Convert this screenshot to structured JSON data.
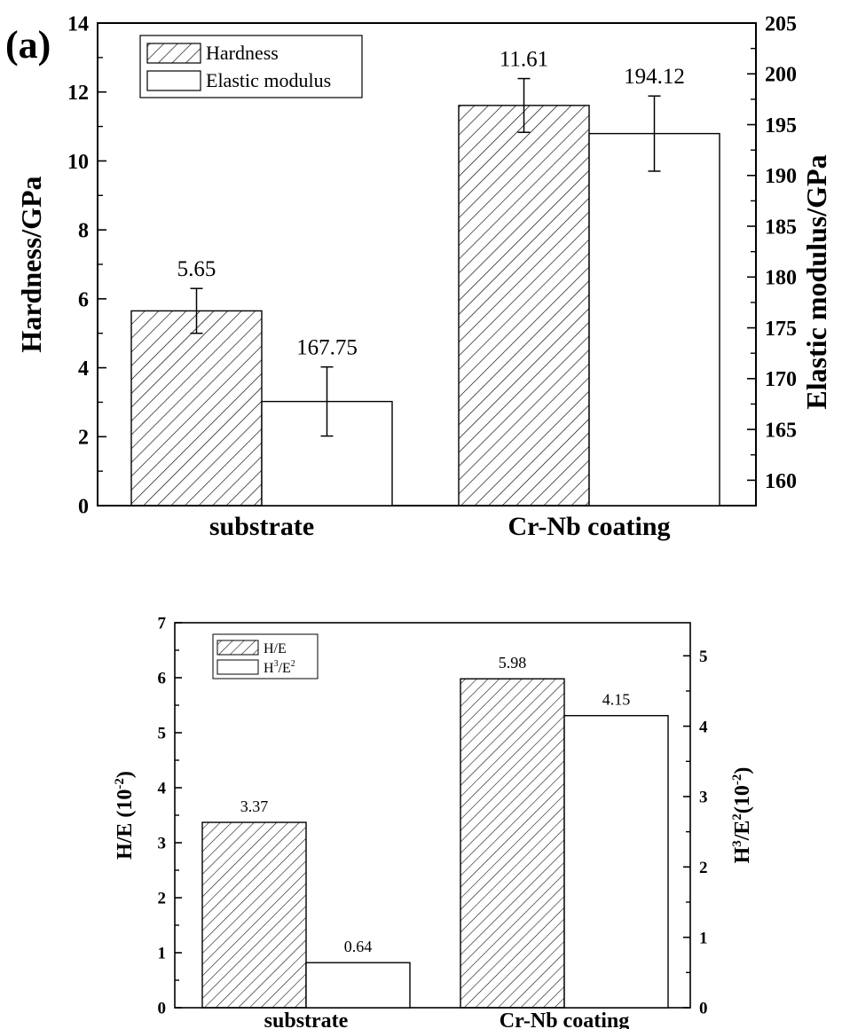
{
  "chart_data": [
    {
      "type": "bar",
      "panel_label": "(a)",
      "categories": [
        "substrate",
        "Cr-Nb coating"
      ],
      "ylabel": "Hardness/GPa",
      "ylabel_right": "Elastic modulus/GPa",
      "ylim": [
        0,
        14
      ],
      "ylim_right": [
        157.5,
        205
      ],
      "yticks": [
        "0",
        "2",
        "4",
        "6",
        "8",
        "10",
        "12",
        "14"
      ],
      "yticks_right": [
        "160",
        "165",
        "170",
        "175",
        "180",
        "185",
        "190",
        "195",
        "200",
        "205"
      ],
      "legend_position": "top-left",
      "series": [
        {
          "name": "Hardness",
          "axis": "left",
          "fill": "hatched",
          "values": [
            5.65,
            11.61
          ],
          "errors": [
            0.65,
            0.78
          ],
          "labels": [
            "5.65",
            "11.61"
          ]
        },
        {
          "name": "Elastic modulus",
          "axis": "right",
          "fill": "open",
          "values": [
            167.75,
            194.12
          ],
          "errors": [
            3.4,
            3.7
          ],
          "labels": [
            "167.75",
            "194.12"
          ]
        }
      ]
    },
    {
      "type": "bar",
      "categories": [
        "substrate",
        "Cr-Nb coating"
      ],
      "ylabel_left": {
        "main": "H/E (10",
        "sup": "-2",
        "close": ")"
      },
      "ylabel_right": {
        "h": "H",
        "sup1": "3",
        "mid": "/E",
        "sup2": "2",
        "tail": "(10",
        "sup3": "-2",
        "close": ")"
      },
      "ylim": [
        0,
        7
      ],
      "ylim_right": [
        0,
        5.47
      ],
      "yticks": [
        "0",
        "1",
        "2",
        "3",
        "4",
        "5",
        "6",
        "7"
      ],
      "yticks_right": [
        "0",
        "1",
        "2",
        "3",
        "4",
        "5"
      ],
      "legend_position": "top-left",
      "series": [
        {
          "name": "H/E",
          "axis": "left",
          "fill": "hatched",
          "values": [
            3.37,
            5.98
          ],
          "labels": [
            "3.37",
            "5.98"
          ]
        },
        {
          "name": {
            "h": "H",
            "sup1": "3",
            "mid": "/E",
            "sup2": "2"
          },
          "axis": "right",
          "fill": "open",
          "values": [
            0.64,
            4.15
          ],
          "labels": [
            "0.64",
            "4.15"
          ]
        }
      ]
    }
  ]
}
